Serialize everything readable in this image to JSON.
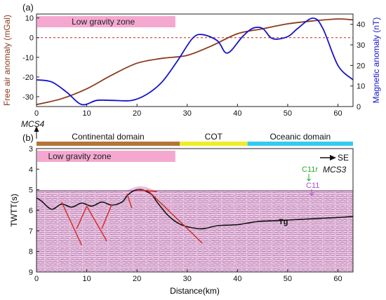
{
  "chart_data": [
    {
      "panel": "(a)",
      "type": "line",
      "xlim": [
        0,
        63
      ],
      "x_ticks": [
        0,
        10,
        20,
        30,
        40,
        50,
        60
      ],
      "left_axis": {
        "label": "Free air anomaly (mGal)",
        "lim": [
          -35,
          12
        ],
        "ticks": [
          10,
          0,
          -10,
          -20,
          -30
        ],
        "color": "#8b3a1e"
      },
      "right_axis": {
        "label": "Magnetic anomaly (nT)",
        "lim": [
          0,
          45
        ],
        "ticks": [
          0,
          10,
          20,
          30,
          40
        ],
        "color": "#1414cc"
      },
      "zero_line": {
        "value": 0,
        "color": "#cc2222"
      },
      "zone": {
        "label": "Low gravity zone",
        "x": [
          0,
          27.5
        ],
        "color": "#f4a8d0"
      },
      "series": [
        {
          "axis": "left",
          "color": "#8b3a1e",
          "x": [
            0,
            5,
            10,
            15,
            20,
            25,
            30,
            35,
            40,
            45,
            50,
            55,
            60,
            63
          ],
          "y": [
            -34,
            -31,
            -26,
            -19,
            -13,
            -10.5,
            -9,
            -4,
            2,
            4.5,
            7,
            8.5,
            9.5,
            9
          ]
        },
        {
          "axis": "right",
          "color": "#1414cc",
          "x": [
            0,
            3,
            6,
            9,
            12,
            15,
            19,
            22,
            25,
            28,
            31,
            33,
            36,
            38,
            41,
            43,
            45,
            47,
            50,
            52,
            55,
            57,
            60,
            63
          ],
          "y": [
            13,
            12,
            7,
            1,
            3,
            3,
            3,
            6,
            12,
            22,
            33,
            35,
            32,
            26,
            34,
            38,
            38,
            33,
            34,
            38,
            43,
            38,
            20,
            13
          ]
        }
      ]
    },
    {
      "panel": "(b)",
      "type": "seismic-profile",
      "xlim": [
        0,
        63
      ],
      "x_ticks": [
        0,
        10,
        20,
        30,
        40,
        50,
        60
      ],
      "xlabel": "Distance(km)",
      "ylim": [
        3,
        9
      ],
      "y_ticks": [
        3,
        4,
        5,
        6,
        7,
        8,
        9
      ],
      "ylabel": "TWTT(s)",
      "domains": [
        {
          "label": "Continental domain",
          "x": [
            0,
            28.5
          ],
          "color": "#b5743a"
        },
        {
          "label": "COT",
          "x": [
            28.5,
            42
          ],
          "color": "#eded2a"
        },
        {
          "label": "Oceanic domain",
          "x": [
            42,
            63
          ],
          "color": "#33ccee"
        }
      ],
      "zone": {
        "label": "Low gravity zone",
        "x": [
          0,
          27.5
        ],
        "color": "#f4a8d0"
      },
      "direction": "SE",
      "line_labels": [
        "MCS4",
        "MCS3"
      ],
      "anomaly_labels": {
        "c11r": "C11r",
        "c11": "C11"
      },
      "horizon": {
        "label": "Tg",
        "x": [
          0,
          1,
          3,
          5,
          7,
          9,
          11,
          13,
          15,
          17,
          18,
          19,
          20,
          21,
          22,
          23,
          24,
          26,
          28,
          30,
          33,
          36,
          40,
          44,
          48,
          52,
          56,
          60,
          63
        ],
        "y": [
          5.4,
          5.55,
          5.95,
          5.7,
          5.85,
          5.65,
          5.8,
          5.6,
          5.75,
          5.6,
          5.3,
          5.1,
          5.0,
          5.0,
          5.1,
          5.25,
          5.6,
          6.2,
          6.6,
          6.8,
          6.9,
          6.75,
          6.7,
          6.55,
          6.5,
          6.45,
          6.4,
          6.35,
          6.3
        ]
      },
      "faults": [
        {
          "x": [
            5,
            9
          ],
          "y": [
            5.6,
            7.7
          ]
        },
        {
          "x": [
            10,
            8
          ],
          "y": [
            5.8,
            6.9
          ]
        },
        {
          "x": [
            10,
            14
          ],
          "y": [
            5.8,
            7.5
          ]
        },
        {
          "x": [
            15,
            13
          ],
          "y": [
            5.7,
            6.9
          ]
        },
        {
          "x": [
            18,
            19
          ],
          "y": [
            5.2,
            5.9
          ]
        },
        {
          "x": [
            22,
            33
          ],
          "y": [
            5.0,
            7.6
          ]
        },
        {
          "x": [
            20,
            24
          ],
          "y": [
            5.0,
            5.1
          ]
        }
      ]
    }
  ]
}
